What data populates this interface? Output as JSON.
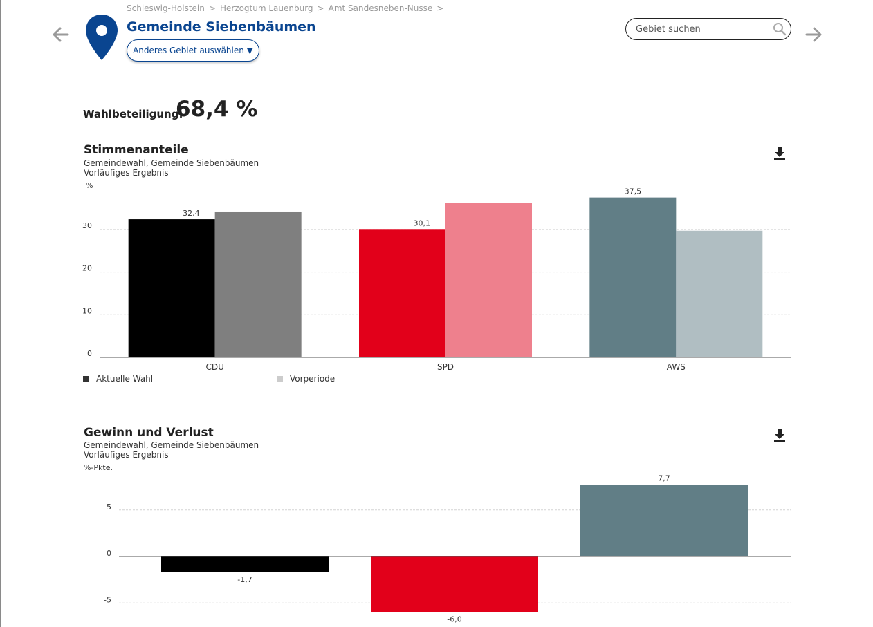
{
  "breadcrumb": [
    "Schleswig-Holstein",
    "Herzogtum Lauenburg",
    "Amt Sandesneben-Nusse"
  ],
  "breadcrumb_separator": ">",
  "title": "Gemeinde Siebenbäumen",
  "select_button_label": "Anderes Gebiet auswählen ▼",
  "search": {
    "placeholder": "Gebiet suchen",
    "value": ""
  },
  "turnout": {
    "label": "Wahlbeteiligung:",
    "value": "68,4 %"
  },
  "colors": {
    "brand": "#0a4590",
    "cdu": "#000000",
    "cdu_prev": "#7f7f7f",
    "spd": "#e2001a",
    "spd_prev": "#ee808d",
    "aws": "#617e86",
    "aws_prev": "#b0bec2"
  },
  "chart_data": [
    {
      "type": "bar",
      "title": "Stimmenanteile",
      "subtitle": [
        "Gemeindewahl, Gemeinde Siebenbäumen",
        "Vorläufiges Ergebnis"
      ],
      "unit": "%",
      "categories": [
        "CDU",
        "SPD",
        "AWS"
      ],
      "series": [
        {
          "name": "Aktuelle Wahl",
          "values": [
            32.4,
            30.1,
            37.5
          ],
          "labels": [
            "32,4",
            "30,1",
            "37,5"
          ],
          "colors": [
            "#000000",
            "#e2001a",
            "#617e86"
          ]
        },
        {
          "name": "Vorperiode",
          "values": [
            34.2,
            36.2,
            29.7
          ],
          "colors": [
            "#7f7f7f",
            "#ee808d",
            "#b0bec2"
          ]
        }
      ],
      "ylim": [
        0,
        40
      ],
      "yticks": [
        0,
        10,
        20,
        30
      ],
      "grid": true,
      "legend": "bottom-left",
      "legend_colors": [
        "#333333",
        "#cccccc"
      ]
    },
    {
      "type": "bar",
      "title": "Gewinn und Verlust",
      "subtitle": [
        "Gemeindewahl, Gemeinde Siebenbäumen",
        "Vorläufiges Ergebnis"
      ],
      "unit": "%-Pkte.",
      "categories": [
        "CDU",
        "SPD",
        "AWS"
      ],
      "values": [
        -1.7,
        -6.0,
        7.7
      ],
      "labels": [
        "-1,7",
        "-6,0",
        "7,7"
      ],
      "colors": [
        "#000000",
        "#e2001a",
        "#617e86"
      ],
      "ylim": [
        -7,
        8
      ],
      "yticks": [
        -5,
        0,
        5
      ],
      "grid": true
    }
  ]
}
